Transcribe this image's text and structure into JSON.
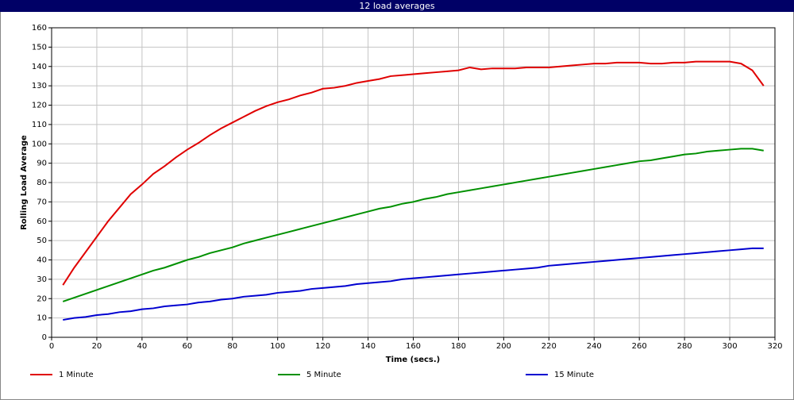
{
  "chart_data": {
    "type": "line",
    "title": "12 load averages",
    "xlabel": "Time (secs.)",
    "ylabel": "Rolling Load Average",
    "x": [
      5,
      10,
      15,
      20,
      25,
      30,
      35,
      40,
      45,
      50,
      55,
      60,
      65,
      70,
      75,
      80,
      85,
      90,
      95,
      100,
      105,
      110,
      115,
      120,
      125,
      130,
      135,
      140,
      145,
      150,
      155,
      160,
      165,
      170,
      175,
      180,
      185,
      190,
      195,
      200,
      205,
      210,
      215,
      220,
      225,
      230,
      235,
      240,
      245,
      250,
      255,
      260,
      265,
      270,
      275,
      280,
      285,
      290,
      295,
      300,
      305,
      310,
      315
    ],
    "series": [
      {
        "name": "1 Minute",
        "color": "#e00000",
        "values": [
          27,
          36,
          44,
          52,
          60,
          67,
          74,
          79,
          84.5,
          88.5,
          93,
          97,
          100.5,
          104.5,
          108,
          111,
          114,
          117,
          119.5,
          121.5,
          123,
          125,
          126.5,
          128.5,
          129,
          130,
          131.5,
          132.5,
          133.5,
          135,
          135.5,
          136,
          136.5,
          137,
          137.5,
          138,
          139.5,
          138.5,
          139,
          139,
          139,
          139.5,
          139.5,
          139.5,
          140,
          140.5,
          141,
          141.5,
          141.5,
          142,
          142,
          142,
          141.5,
          141.5,
          142,
          142,
          142.5,
          142.5,
          142.5,
          142.5,
          141.5,
          138,
          130
        ]
      },
      {
        "name": "5 Minute",
        "color": "#009000",
        "values": [
          18.5,
          20.5,
          22.5,
          24.5,
          26.5,
          28.5,
          30.5,
          32.5,
          34.5,
          36,
          38,
          40,
          41.5,
          43.5,
          45,
          46.5,
          48.5,
          50,
          51.5,
          53,
          54.5,
          56,
          57.5,
          59,
          60.5,
          62,
          63.5,
          65,
          66.5,
          67.5,
          69,
          70,
          71.5,
          72.5,
          74,
          75,
          76,
          77,
          78,
          79,
          80,
          81,
          82,
          83,
          84,
          85,
          86,
          87,
          88,
          89,
          90,
          91,
          91.5,
          92.5,
          93.5,
          94.5,
          95,
          96,
          96.5,
          97,
          97.5,
          97.5,
          96.5
        ]
      },
      {
        "name": "15 Minute",
        "color": "#0000d0",
        "values": [
          9,
          10,
          10.5,
          11.5,
          12,
          13,
          13.5,
          14.5,
          15,
          16,
          16.5,
          17,
          18,
          18.5,
          19.5,
          20,
          21,
          21.5,
          22,
          23,
          23.5,
          24,
          25,
          25.5,
          26,
          26.5,
          27.5,
          28,
          28.5,
          29,
          30,
          30.5,
          31,
          31.5,
          32,
          32.5,
          33,
          33.5,
          34,
          34.5,
          35,
          35.5,
          36,
          37,
          37.5,
          38,
          38.5,
          39,
          39.5,
          40,
          40.5,
          41,
          41.5,
          42,
          42.5,
          43,
          43.5,
          44,
          44.5,
          45,
          45.5,
          46,
          46
        ]
      }
    ],
    "xlim": [
      0,
      320
    ],
    "xticks": [
      0,
      20,
      40,
      60,
      80,
      100,
      120,
      140,
      160,
      180,
      200,
      220,
      240,
      260,
      280,
      300,
      320
    ],
    "ylim": [
      0,
      160
    ],
    "yticks": [
      0,
      10,
      20,
      30,
      40,
      50,
      60,
      70,
      80,
      90,
      100,
      110,
      120,
      130,
      140,
      150,
      160
    ],
    "grid": true,
    "legend": "bottom"
  }
}
